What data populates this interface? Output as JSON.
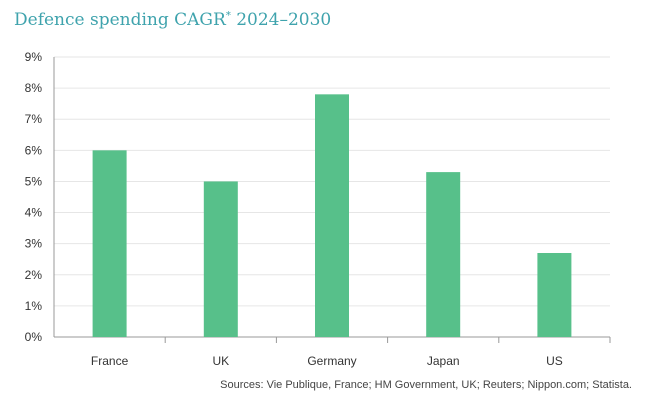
{
  "title": {
    "main": "Defence spending CAGR",
    "mark": "*",
    "period": " 2024–2030"
  },
  "source": "Sources: Vie Publique, France; HM Government, UK; Reuters; Nippon.com; Statista.",
  "colors": {
    "bar": "#57c08a",
    "title": "#3fa3ad",
    "grid": "#e6e6e6",
    "axis": "#999999"
  },
  "chart_data": {
    "type": "bar",
    "title": "Defence spending CAGR* 2024–2030",
    "categories": [
      "France",
      "UK",
      "Germany",
      "Japan",
      "US"
    ],
    "values": [
      6.0,
      5.0,
      7.8,
      5.3,
      2.7
    ],
    "y_ticks": [
      "0%",
      "1%",
      "2%",
      "3%",
      "4%",
      "5%",
      "6%",
      "7%",
      "8%",
      "9%"
    ],
    "ylim": [
      0,
      9
    ],
    "grid": true,
    "xlabel": "",
    "ylabel": ""
  }
}
